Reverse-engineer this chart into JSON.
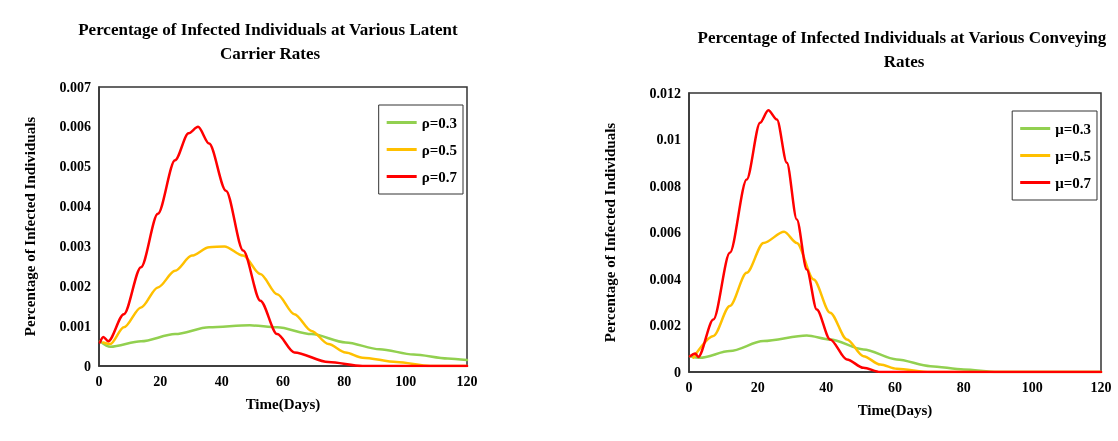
{
  "chart_data": [
    {
      "type": "line",
      "title": "Percentage of Infected Individuals at Various Latent Carrier Rates",
      "xlabel": "Time(Days)",
      "ylabel": "Percentage of Infected Individuals",
      "xlim": [
        0,
        120
      ],
      "xticks": [
        0,
        20,
        40,
        60,
        80,
        100,
        120
      ],
      "ylim": [
        0,
        0.007
      ],
      "yticks": [
        0,
        0.001,
        0.002,
        0.003,
        0.004,
        0.005,
        0.006,
        0.007
      ],
      "grid": false,
      "legend": "top right",
      "marker": "none",
      "line_style": "solid",
      "series": [
        {
          "name": "ρ=0.3",
          "color": "#92d050",
          "x": [
            0.3,
            3.7,
            13.7,
            24.8,
            35.9,
            49.2,
            58.1,
            69.3,
            80.4,
            91.5,
            102.6,
            113.7,
            120
          ],
          "values": [
            0.00062,
            0.00048,
            0.00062,
            0.0008,
            0.00097,
            0.00102,
            0.00097,
            0.0008,
            0.00059,
            0.00042,
            0.00029,
            0.00019,
            0.00015
          ]
        },
        {
          "name": "ρ=0.5",
          "color": "#ffc000",
          "x": [
            1.4,
            3.7,
            8.1,
            13.7,
            19.2,
            24.8,
            30.3,
            35.9,
            40.9,
            47,
            52.6,
            58.1,
            63.7,
            69.3,
            74.8,
            80.4,
            85.9,
            97,
            108,
            120
          ],
          "values": [
            0.00059,
            0.00055,
            0.00097,
            0.00147,
            0.00197,
            0.00239,
            0.00277,
            0.00298,
            0.003,
            0.00277,
            0.00231,
            0.0018,
            0.0013,
            0.00088,
            0.00055,
            0.00034,
            0.00021,
            0.0001,
            0,
            0
          ]
        },
        {
          "name": "ρ=0.7",
          "color": "#ff0000",
          "x": [
            0.3,
            1.4,
            3,
            8.1,
            13.7,
            19.2,
            24.8,
            29.2,
            32.3,
            35.9,
            41.4,
            47,
            52.6,
            58.1,
            63.7,
            74.8,
            85.9,
            120
          ],
          "values": [
            0.00059,
            0.00073,
            0.00062,
            0.0013,
            0.00248,
            0.00382,
            0.00516,
            0.00584,
            0.006,
            0.00558,
            0.0044,
            0.0029,
            0.00164,
            0.0008,
            0.00034,
            0.0001,
            0,
            0
          ]
        }
      ]
    },
    {
      "type": "line",
      "title": "Percentage of Infected Individuals at Various Conveying Rates",
      "xlabel": "Time(Days)",
      "ylabel": "Percentage of Infected Individuals",
      "xlim": [
        0,
        120
      ],
      "xticks": [
        0,
        20,
        40,
        60,
        80,
        100,
        120
      ],
      "ylim": [
        0,
        0.012
      ],
      "yticks": [
        0,
        0.002,
        0.004,
        0.006,
        0.008,
        0.01,
        0.012
      ],
      "grid": false,
      "legend": "top right",
      "marker": "none",
      "line_style": "solid",
      "series": [
        {
          "name": "μ=0.3",
          "color": "#92d050",
          "x": [
            0.3,
            3.2,
            11.9,
            21.7,
            34.3,
            41.1,
            50.8,
            60.5,
            70.3,
            80,
            89.8,
            120
          ],
          "values": [
            0.00068,
            0.00061,
            0.0009,
            0.00133,
            0.00157,
            0.0014,
            0.00097,
            0.00054,
            0.00025,
            0.00011,
            0,
            0
          ]
        },
        {
          "name": "μ=0.5",
          "color": "#ffc000",
          "x": [
            1.3,
            7.1,
            11.9,
            16.8,
            21.7,
            27.7,
            31.4,
            36.3,
            41.1,
            46,
            50.8,
            55.7,
            60.5,
            70.3,
            120
          ],
          "values": [
            0.00062,
            0.00155,
            0.00284,
            0.00427,
            0.00555,
            0.00603,
            0.00555,
            0.00398,
            0.00255,
            0.0014,
            0.00068,
            0.00032,
            0.00014,
            0,
            0
          ]
        },
        {
          "name": "μ=0.7",
          "color": "#ff0000",
          "x": [
            0.3,
            1.8,
            2.7,
            7.1,
            11.9,
            16.8,
            20.7,
            23.1,
            25.6,
            28.5,
            31.4,
            34.3,
            37.2,
            41.1,
            46,
            50.8,
            55.7,
            70,
            120
          ],
          "values": [
            0.00068,
            0.0008,
            0.00065,
            0.00226,
            0.00513,
            0.00828,
            0.01072,
            0.01126,
            0.01086,
            0.009,
            0.00656,
            0.00441,
            0.00269,
            0.0014,
            0.00054,
            0.00018,
            0,
            0,
            0
          ]
        }
      ]
    }
  ]
}
